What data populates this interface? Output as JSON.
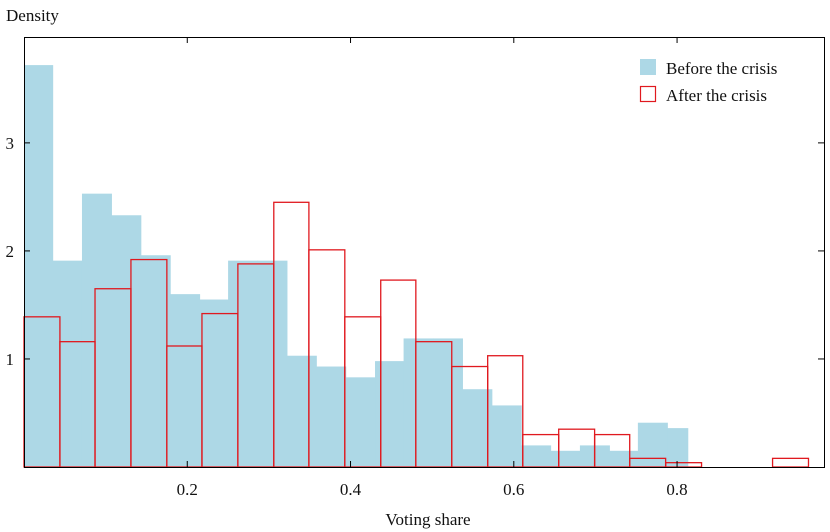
{
  "chart_data": {
    "type": "histogram",
    "ylabel": "Density",
    "xlabel": "Voting share",
    "xlim": [
      0,
      0.98
    ],
    "ylim": [
      0,
      3.98
    ],
    "x_ticks": [
      0.2,
      0.4,
      0.6,
      0.8
    ],
    "x_tick_labels": [
      "0.2",
      "0.4",
      "0.6",
      "0.8"
    ],
    "y_ticks": [
      1,
      2,
      3
    ],
    "y_tick_labels": [
      "1",
      "2",
      "3"
    ],
    "legend_position": "top-right",
    "series": [
      {
        "name": "Before the crisis",
        "style": "filled",
        "color": "#add8e6",
        "bins": [
          [
            0.0,
            0.035,
            3.72
          ],
          [
            0.035,
            0.071,
            1.91
          ],
          [
            0.071,
            0.107,
            2.53
          ],
          [
            0.107,
            0.143,
            2.33
          ],
          [
            0.143,
            0.179,
            1.96
          ],
          [
            0.179,
            0.215,
            1.6
          ],
          [
            0.215,
            0.25,
            1.55
          ],
          [
            0.25,
            0.286,
            1.91
          ],
          [
            0.286,
            0.322,
            1.91
          ],
          [
            0.322,
            0.358,
            1.03
          ],
          [
            0.358,
            0.394,
            0.93
          ],
          [
            0.394,
            0.43,
            0.83
          ],
          [
            0.43,
            0.465,
            0.98
          ],
          [
            0.465,
            0.501,
            1.19
          ],
          [
            0.501,
            0.537,
            1.19
          ],
          [
            0.537,
            0.573,
            0.72
          ],
          [
            0.573,
            0.609,
            0.57
          ],
          [
            0.609,
            0.645,
            0.2
          ],
          [
            0.645,
            0.681,
            0.15
          ],
          [
            0.681,
            0.717,
            0.2
          ],
          [
            0.717,
            0.752,
            0.15
          ],
          [
            0.752,
            0.788,
            0.41
          ],
          [
            0.788,
            0.813,
            0.36
          ]
        ]
      },
      {
        "name": "After the crisis",
        "style": "outline",
        "color": "#e0191f",
        "bins": [
          [
            0.0,
            0.044,
            1.39
          ],
          [
            0.044,
            0.087,
            1.16
          ],
          [
            0.087,
            0.131,
            1.65
          ],
          [
            0.131,
            0.175,
            1.92
          ],
          [
            0.175,
            0.218,
            1.12
          ],
          [
            0.218,
            0.262,
            1.42
          ],
          [
            0.262,
            0.306,
            1.88
          ],
          [
            0.306,
            0.349,
            2.45
          ],
          [
            0.349,
            0.393,
            2.01
          ],
          [
            0.393,
            0.437,
            1.39
          ],
          [
            0.437,
            0.48,
            1.73
          ],
          [
            0.48,
            0.524,
            1.16
          ],
          [
            0.524,
            0.568,
            0.93
          ],
          [
            0.568,
            0.611,
            1.03
          ],
          [
            0.611,
            0.655,
            0.3
          ],
          [
            0.655,
            0.699,
            0.35
          ],
          [
            0.699,
            0.742,
            0.3
          ],
          [
            0.742,
            0.786,
            0.08
          ],
          [
            0.786,
            0.83,
            0.04
          ],
          [
            0.83,
            0.917,
            0.0
          ],
          [
            0.917,
            0.961,
            0.08
          ]
        ]
      }
    ]
  }
}
